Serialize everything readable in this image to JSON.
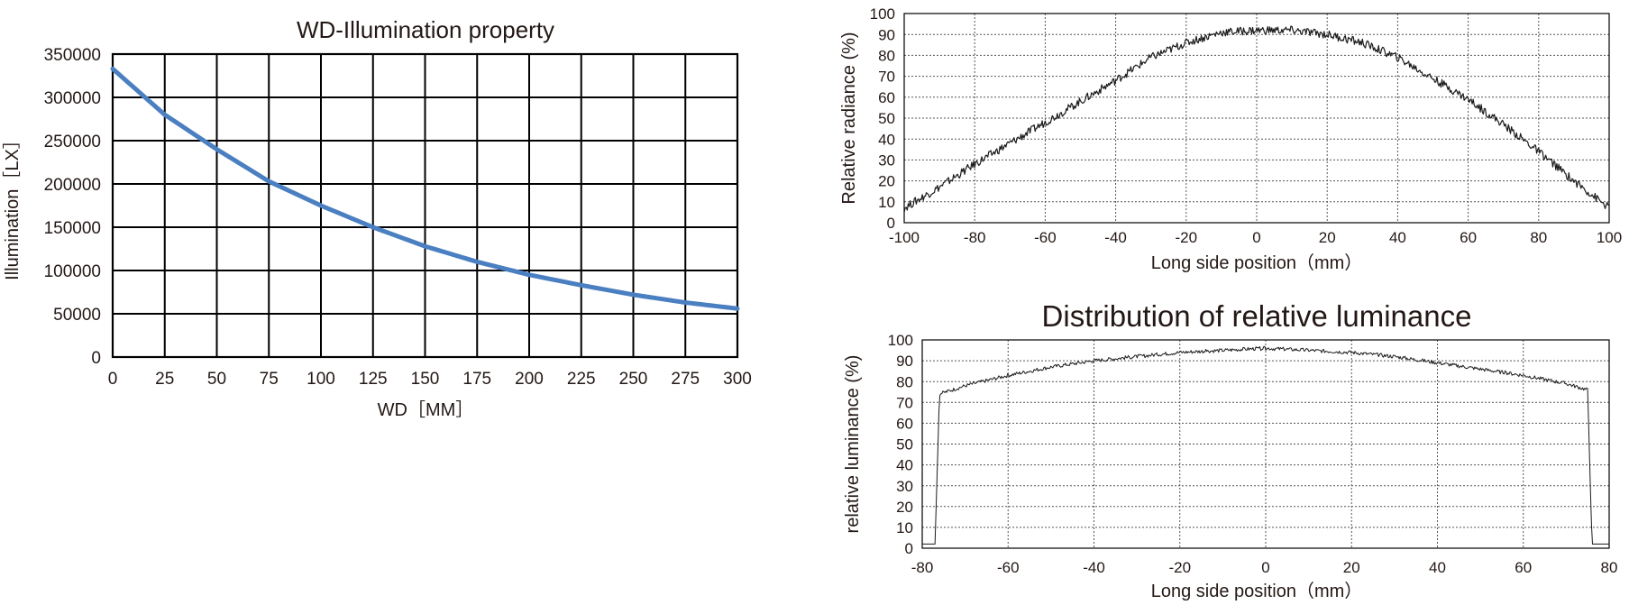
{
  "chart_data": [
    {
      "type": "line",
      "title": "WD-Illumination property",
      "xlabel": "WD［MM］",
      "ylabel": "Illumination［LX］",
      "x": [
        0,
        25,
        50,
        75,
        100,
        125,
        150,
        175,
        200,
        225,
        250,
        275,
        300
      ],
      "series": [
        {
          "values": [
            333000,
            280000,
            240000,
            203000,
            175000,
            150000,
            128000,
            110000,
            95000,
            83000,
            72000,
            63000,
            56000
          ]
        }
      ],
      "xlim": [
        0,
        300
      ],
      "ylim": [
        0,
        350000
      ],
      "xticks": [
        "0",
        "25",
        "50",
        "75",
        "100",
        "125",
        "150",
        "175",
        "200",
        "225",
        "250",
        "275",
        "300"
      ],
      "yticks": [
        "0",
        "50000",
        "100000",
        "150000",
        "200000",
        "250000",
        "300000",
        "350000"
      ],
      "grid": true,
      "line_color": "#4a7fc1"
    },
    {
      "type": "line",
      "title": "",
      "xlabel": "Long side position（mm）",
      "ylabel": "Relative radiance (%)",
      "x": [
        -100,
        -90,
        -80,
        -70,
        -60,
        -50,
        -40,
        -30,
        -20,
        -10,
        0,
        10,
        20,
        30,
        40,
        50,
        60,
        70,
        80,
        90,
        100
      ],
      "series": [
        {
          "values": [
            7,
            17,
            28,
            38,
            48,
            58,
            68,
            79,
            86,
            91,
            92,
            92,
            90,
            86,
            79,
            69,
            59,
            47,
            34,
            20,
            7
          ]
        }
      ],
      "xlim": [
        -100,
        100
      ],
      "ylim": [
        0,
        100
      ],
      "xticks": [
        "-100",
        "-80",
        "-60",
        "-40",
        "-20",
        "0",
        "20",
        "40",
        "60",
        "80",
        "100"
      ],
      "yticks": [
        "0",
        "10",
        "20",
        "30",
        "40",
        "50",
        "60",
        "70",
        "80",
        "90",
        "100"
      ],
      "grid": true,
      "line_color": "#1a1a1a"
    },
    {
      "type": "line",
      "title": "Distribution of relative luminance",
      "xlabel": "Long side position（mm）",
      "ylabel": "relative luminance (%)",
      "x": [
        -80,
        -77,
        -76,
        -70,
        -60,
        -50,
        -40,
        -30,
        -20,
        -10,
        0,
        10,
        20,
        30,
        40,
        50,
        60,
        70,
        75,
        76,
        80
      ],
      "series": [
        {
          "values": [
            2,
            2,
            74,
            78,
            83,
            87,
            90,
            92,
            94,
            95,
            96,
            95,
            94,
            92,
            89,
            86,
            83,
            79,
            76,
            2,
            2
          ]
        }
      ],
      "xlim": [
        -80,
        80
      ],
      "ylim": [
        0,
        100
      ],
      "xticks": [
        "-80",
        "-60",
        "-40",
        "-20",
        "0",
        "20",
        "40",
        "60",
        "80"
      ],
      "yticks": [
        "0",
        "10",
        "20",
        "30",
        "40",
        "50",
        "60",
        "70",
        "80",
        "90",
        "100"
      ],
      "grid": true,
      "line_color": "#1a1a1a"
    }
  ]
}
